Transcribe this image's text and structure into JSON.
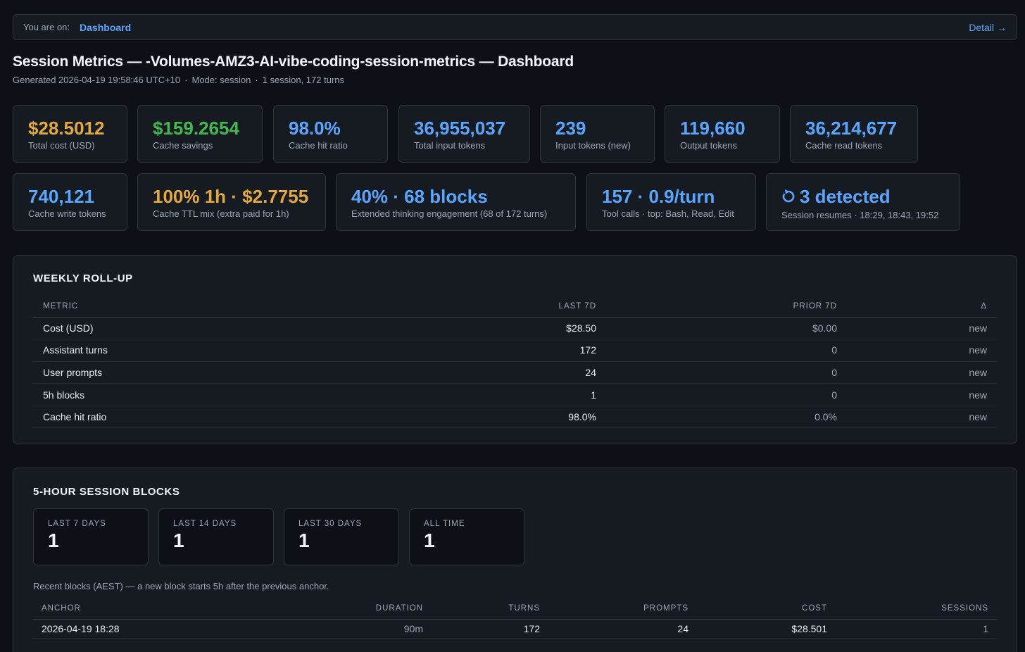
{
  "nav": {
    "prefix": "You are on:",
    "current": "Dashboard",
    "detail_link": "Detail",
    "detail_arrow": "→"
  },
  "header": {
    "title": "Session Metrics — -Volumes-AMZ3-AI-vibe-coding-session-metrics — Dashboard",
    "generated": "Generated 2026-04-19 19:58:46 UTC+10",
    "mode": "Mode: session",
    "summary": "1 session, 172 turns",
    "sep": "·"
  },
  "kpis_row1": [
    {
      "value": "$28.5012",
      "label": "Total cost (USD)"
    },
    {
      "value": "$159.2654",
      "label": "Cache savings"
    },
    {
      "value": "98.0%",
      "label": "Cache hit ratio"
    },
    {
      "value": "36,955,037",
      "label": "Total input tokens"
    },
    {
      "value": "239",
      "label": "Input tokens (new)"
    },
    {
      "value": "119,660",
      "label": "Output tokens"
    },
    {
      "value": "36,214,677",
      "label": "Cache read tokens"
    }
  ],
  "kpis_row2": [
    {
      "value": "740,121",
      "label": "Cache write tokens"
    },
    {
      "value": "100% 1h · $2.7755",
      "label": "Cache TTL mix (extra paid for 1h)"
    },
    {
      "value": "40% · 68 blocks",
      "label": "Extended thinking engagement (68 of 172 turns)"
    },
    {
      "value": "157 · 0.9/turn",
      "label": "Tool calls · top: Bash, Read, Edit"
    },
    {
      "value": "3 detected",
      "label": "Session resumes · 18:29, 18:43, 19:52",
      "icon": "refresh-icon"
    }
  ],
  "colors": {
    "gold": "#e3a93a",
    "green": "#3fb950",
    "blue": "#58a6ff",
    "bg": "#0d1117",
    "panel": "#161b22"
  },
  "weekly": {
    "title": "WEEKLY ROLL-UP",
    "columns": [
      "Metric",
      "Last 7d",
      "Prior 7d",
      "Δ"
    ],
    "rows": [
      [
        "Cost (USD)",
        "$28.50",
        "$0.00",
        "new"
      ],
      [
        "Assistant turns",
        "172",
        "0",
        "new"
      ],
      [
        "User prompts",
        "24",
        "0",
        "new"
      ],
      [
        "5h blocks",
        "1",
        "0",
        "new"
      ],
      [
        "Cache hit ratio",
        "98.0%",
        "0.0%",
        "new"
      ]
    ]
  },
  "blocks": {
    "title": "5-HOUR SESSION BLOCKS",
    "cards": [
      {
        "label": "Last 7 days",
        "value": "1"
      },
      {
        "label": "Last 14 days",
        "value": "1"
      },
      {
        "label": "Last 30 days",
        "value": "1"
      },
      {
        "label": "All time",
        "value": "1"
      }
    ],
    "note": "Recent blocks (AEST) — a new block starts 5h after the previous anchor.",
    "columns": [
      "Anchor",
      "Duration",
      "Turns",
      "Prompts",
      "Cost",
      "Sessions"
    ],
    "rows": [
      [
        "2026-04-19 18:28",
        "90m",
        "172",
        "24",
        "$28.501",
        "1"
      ]
    ]
  }
}
